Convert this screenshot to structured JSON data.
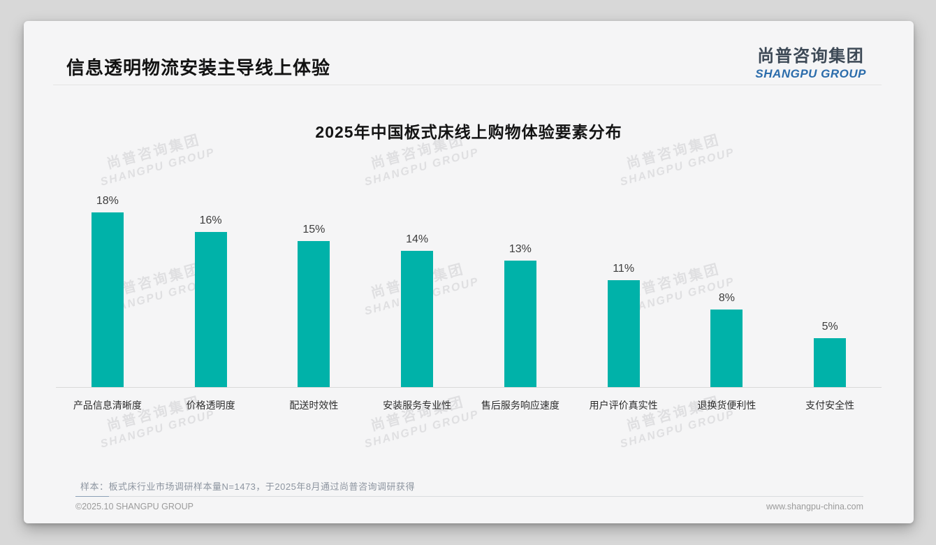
{
  "page": {
    "header": {
      "title": "信息透明物流安装主导线上体验"
    },
    "logo": {
      "cn": "尚普咨询集团",
      "en": "SHANGPU GROUP"
    },
    "watermark": {
      "line1": "尚普咨询集团",
      "line2": "SHANGPU GROUP"
    },
    "note": "样本：板式床行业市场调研样本量N=1473，于2025年8月通过尚普咨询调研获得",
    "footer": {
      "left": "©2025.10 SHANGPU GROUP",
      "right": "www.shangpu-china.com"
    }
  },
  "chart_data": {
    "type": "bar",
    "title": "2025年中国板式床线上购物体验要素分布",
    "categories": [
      "产品信息清晰度",
      "价格透明度",
      "配送时效性",
      "安装服务专业性",
      "售后服务响应速度",
      "用户评价真实性",
      "退换货便利性",
      "支付安全性"
    ],
    "values": [
      18,
      16,
      15,
      14,
      13,
      11,
      8,
      5
    ],
    "unit": "%",
    "xlabel": "",
    "ylabel": "",
    "ylim": [
      0,
      20
    ],
    "grid": false,
    "legend": "none",
    "value_labels": "above-bars",
    "bar_color": "#00b2a9",
    "axis_line_color": "#d9d9d9",
    "value_label_color": "#3c3c3c"
  }
}
